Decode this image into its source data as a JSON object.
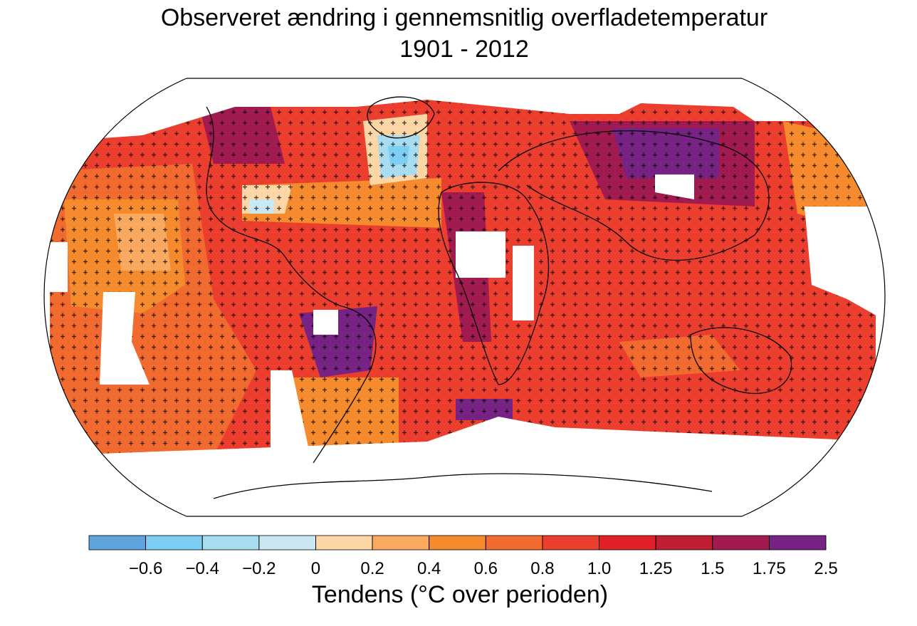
{
  "title": "Observeret ændring i gennemsnitlig overfladetemperatur",
  "subtitle": "1901 - 2012",
  "colorbar": {
    "colors": [
      "#5fa3dc",
      "#7ccff2",
      "#a8dcf1",
      "#c9e8f2",
      "#fdd6a6",
      "#f9aa60",
      "#f58b2c",
      "#f16a30",
      "#ec3e2f",
      "#df2127",
      "#c01f31",
      "#a11b50",
      "#762383"
    ],
    "ticks": [
      {
        "value": -0.6,
        "label": "−0.6"
      },
      {
        "value": -0.4,
        "label": "−0.4"
      },
      {
        "value": -0.2,
        "label": "−0.2"
      },
      0,
      0.2,
      0.4,
      0.6,
      0.8,
      {
        "value": 1,
        "label": "1.0"
      },
      1.25,
      1.5,
      1.75,
      2.5
    ],
    "label": "Tendens (°C over perioden)"
  }
}
